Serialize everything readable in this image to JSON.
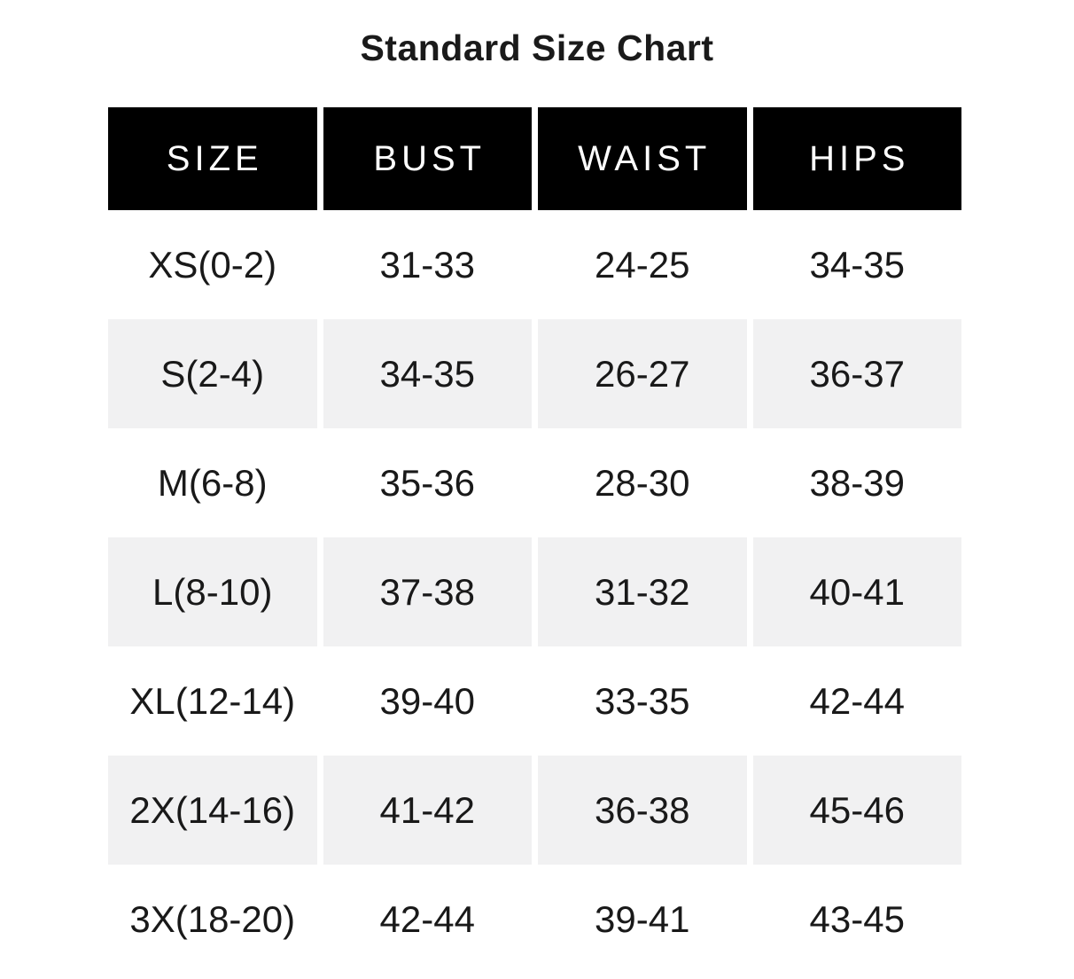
{
  "chart_data": {
    "type": "table",
    "title": "Standard Size Chart",
    "columns": [
      "SIZE",
      "BUST",
      "WAIST",
      "HIPS"
    ],
    "rows": [
      [
        "XS(0-2)",
        "31-33",
        "24-25",
        "34-35"
      ],
      [
        "S(2-4)",
        "34-35",
        "26-27",
        "36-37"
      ],
      [
        "M(6-8)",
        "35-36",
        "28-30",
        "38-39"
      ],
      [
        "L(8-10)",
        "37-38",
        "31-32",
        "40-41"
      ],
      [
        "XL(12-14)",
        "39-40",
        "33-35",
        "42-44"
      ],
      [
        "2X(14-16)",
        "41-42",
        "36-38",
        "45-46"
      ],
      [
        "3X(18-20)",
        "42-44",
        "39-41",
        "43-45"
      ]
    ],
    "layout": {
      "legend": "none",
      "grid": "off",
      "header_style": "solid-black-cells-with-white-gaps",
      "zebra_striping": "even-body-rows-shaded"
    },
    "colors": {
      "header_bg": "#000000",
      "header_text": "#ffffff",
      "row_alt_bg": "#f1f1f2",
      "body_text": "#191919",
      "page_bg": "#ffffff"
    }
  }
}
